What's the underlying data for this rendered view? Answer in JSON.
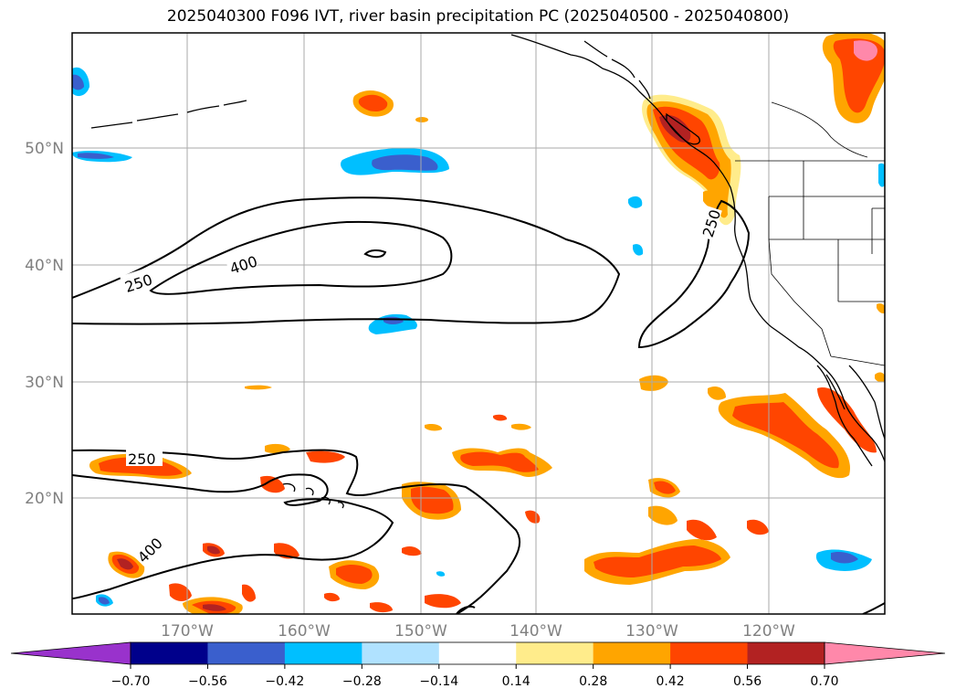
{
  "title": "2025040300 F096 IVT, river basin precipitation PC (2025040500 - 2025040800)",
  "lat_labels": [
    "50°N",
    "40°N",
    "30°N",
    "20°N"
  ],
  "lon_labels": [
    "170°W",
    "160°W",
    "150°W",
    "140°W",
    "130°W",
    "120°W"
  ],
  "contour_labels": [
    "250",
    "400",
    "250",
    "400",
    "250"
  ],
  "colorbar": {
    "ticks": [
      "−0.70",
      "−0.56",
      "−0.42",
      "−0.28",
      "−0.14",
      "0.14",
      "0.28",
      "0.42",
      "0.56",
      "0.70"
    ],
    "under_color": "#9932cc",
    "over_color": "#ff88aa",
    "colors": [
      "#00008b",
      "#3a5fcd",
      "#00bfff",
      "#b0e2ff",
      "#ffffff",
      "#ffec8b",
      "#ffa500",
      "#ff4500",
      "#b22222"
    ]
  },
  "colors": {
    "red": "#ff4500",
    "orange": "#ffa500",
    "yellow": "#ffec8b",
    "dark_red": "#b22222",
    "pink": "#ff88aa",
    "cyan": "#00bfff",
    "light_blue": "#b0e2ff",
    "blue": "#3a5fcd",
    "gridline": "#aaaaaa",
    "tick_label": "#808080"
  }
}
